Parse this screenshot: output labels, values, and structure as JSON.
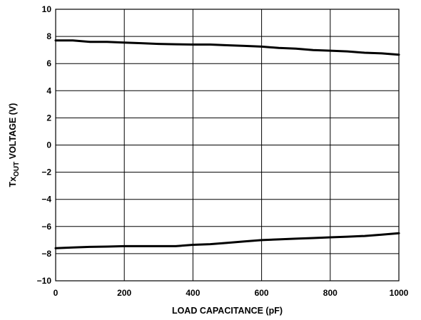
{
  "chart_data": {
    "type": "line",
    "title": "",
    "xlabel": "LOAD CAPACITANCE (pF)",
    "ylabel": {
      "prefix": "Tx",
      "subscript": "OUT",
      "suffix": " VOLTAGE (V)"
    },
    "xlim": [
      0,
      1000
    ],
    "ylim": [
      -10,
      10
    ],
    "x_ticks": [
      0,
      200,
      400,
      600,
      800,
      1000
    ],
    "y_ticks": [
      10,
      8,
      6,
      4,
      2,
      0,
      -2,
      -4,
      -6,
      -8,
      -10
    ],
    "x_tick_labels": [
      "0",
      "200",
      "400",
      "600",
      "800",
      "1000"
    ],
    "y_tick_labels": [
      "10",
      "8",
      "6",
      "4",
      "2",
      "0",
      "−2",
      "−4",
      "−6",
      "−8",
      "−10"
    ],
    "grid": true,
    "series": [
      {
        "x": [
          0,
          50,
          100,
          150,
          200,
          250,
          300,
          350,
          400,
          450,
          500,
          550,
          600,
          650,
          700,
          750,
          800,
          850,
          900,
          950,
          1000
        ],
        "y": [
          7.7,
          7.7,
          7.6,
          7.6,
          7.55,
          7.5,
          7.45,
          7.42,
          7.4,
          7.4,
          7.35,
          7.3,
          7.25,
          7.15,
          7.1,
          7.0,
          6.95,
          6.9,
          6.8,
          6.75,
          6.65
        ]
      },
      {
        "x": [
          0,
          50,
          100,
          150,
          200,
          250,
          300,
          350,
          400,
          450,
          500,
          550,
          600,
          650,
          700,
          750,
          800,
          850,
          900,
          950,
          1000
        ],
        "y": [
          -7.6,
          -7.55,
          -7.5,
          -7.48,
          -7.45,
          -7.45,
          -7.45,
          -7.45,
          -7.35,
          -7.3,
          -7.2,
          -7.1,
          -7.0,
          -6.95,
          -6.9,
          -6.85,
          -6.8,
          -6.75,
          -6.7,
          -6.6,
          -6.5
        ]
      }
    ]
  }
}
